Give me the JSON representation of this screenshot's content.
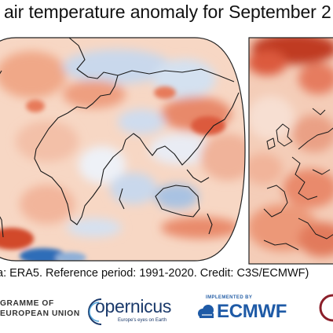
{
  "title": "e air temperature anomaly for September 2",
  "source_line": "a: ERA5.  Reference period: 1991-2020.  Credit: C3S/ECMWF)",
  "logos": {
    "programme_line1": "GRAMME OF",
    "programme_line2": "EUROPEAN UNION",
    "copernicus": "opernicus",
    "copernicus_tagline": "Europe's eyes on Earth",
    "ecmwf_small": "IMPLEMENTED BY",
    "ecmwf": "ECMWF",
    "icons": [
      "copernicus-swirl-icon",
      "ecmwf-cloud-icon",
      "c3s-arc-icon"
    ]
  },
  "maps": [
    {
      "name": "global-anomaly-map",
      "projection": "robinson"
    },
    {
      "name": "europe-anomaly-map"
    }
  ],
  "colors": {
    "warm_light": "#f5c9b0",
    "warm": "#ec9c7c",
    "warm_strong": "#dc5a3c",
    "warm_deep": "#c03a24",
    "cool_light": "#cfdcee",
    "cool": "#8fb0d8",
    "cool_deep": "#2f6db8",
    "coast": "#1a1a1a"
  }
}
